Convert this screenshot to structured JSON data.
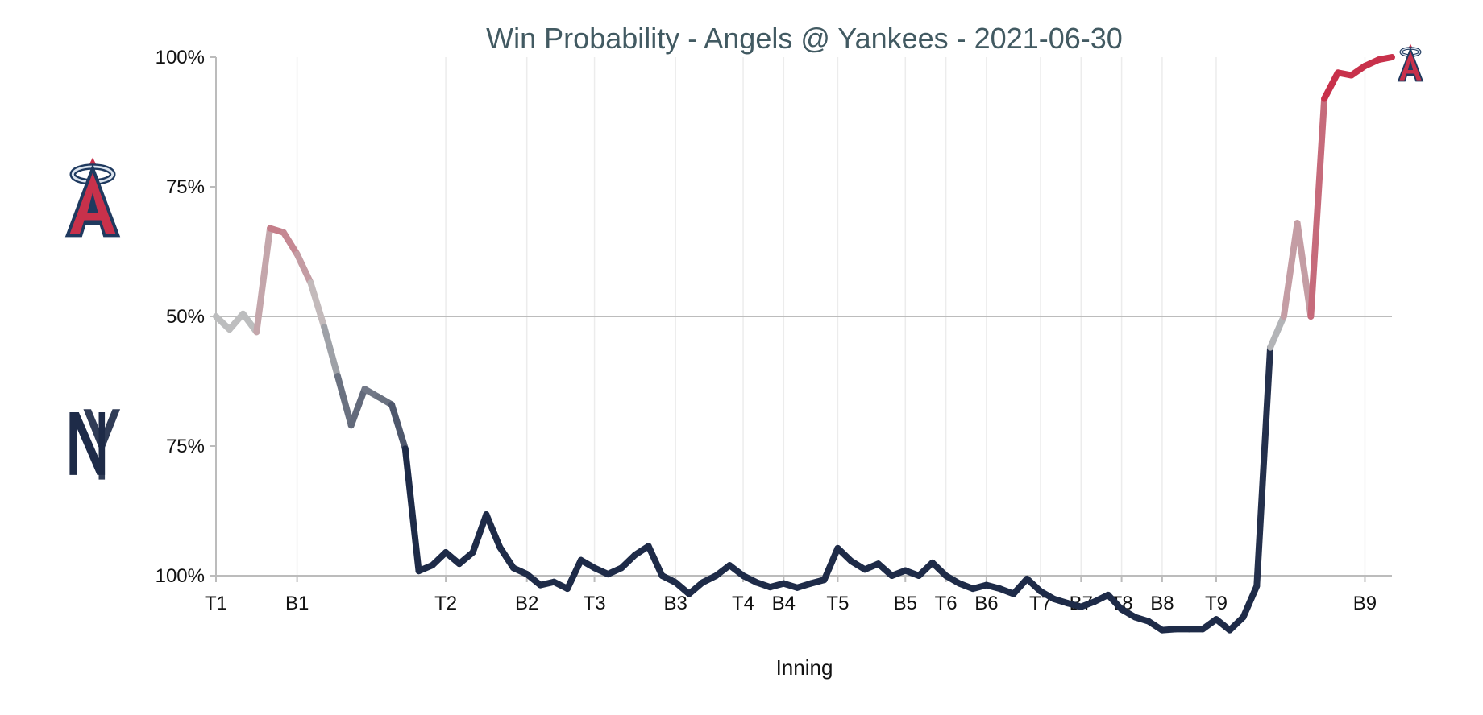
{
  "chart_data": {
    "type": "line",
    "title": "Win Probability - Angels @ Yankees - 2021-06-30",
    "xlabel": "Inning",
    "ylabel": "",
    "x_ticks": [
      {
        "label": "T1",
        "x": 0
      },
      {
        "label": "B1",
        "x": 6
      },
      {
        "label": "T2",
        "x": 17
      },
      {
        "label": "B2",
        "x": 23
      },
      {
        "label": "T3",
        "x": 28
      },
      {
        "label": "B3",
        "x": 34
      },
      {
        "label": "T4",
        "x": 39
      },
      {
        "label": "B4",
        "x": 42
      },
      {
        "label": "T5",
        "x": 46
      },
      {
        "label": "B5",
        "x": 51
      },
      {
        "label": "T6",
        "x": 54
      },
      {
        "label": "B6",
        "x": 57
      },
      {
        "label": "T7",
        "x": 61
      },
      {
        "label": "B7",
        "x": 64
      },
      {
        "label": "T8",
        "x": 67
      },
      {
        "label": "B8",
        "x": 70
      },
      {
        "label": "T9",
        "x": 74
      },
      {
        "label": "B9",
        "x": 85
      }
    ],
    "x_range": [
      0,
      87
    ],
    "y_ticks": [
      "100%",
      "75%",
      "50%",
      "75%",
      "100%"
    ],
    "y_range": [
      0,
      100
    ],
    "series": [
      {
        "values": [
          50,
          47.5,
          50.5,
          47,
          67,
          66.2,
          62,
          56.5,
          48,
          38.5,
          29,
          36,
          34.5,
          33,
          24.5,
          0.9,
          2,
          4.5,
          2.3,
          4.5,
          11.8,
          5.5,
          1.5,
          0.3,
          -1.8,
          -1.2,
          -2.5,
          3,
          1.5,
          0.3,
          1.5,
          4,
          5.7,
          0,
          -1.3,
          -3.5,
          -1.3,
          0,
          2,
          0,
          -1.3,
          -2.2,
          -1.5,
          -2.3,
          -1.5,
          -0.8,
          5.3,
          2.8,
          1.2,
          2.3,
          0,
          1,
          0,
          2.5,
          0,
          -1.5,
          -2.5,
          -1.8,
          -2.5,
          -3.5,
          -0.6,
          -3,
          -4.5,
          -5.3,
          -6,
          -5,
          -3.7,
          -6.5,
          -8,
          -8.8,
          -10.5,
          -10.3,
          -10.3,
          -10.3,
          -8.4,
          -10.5,
          -8,
          -2,
          44,
          50,
          68,
          50,
          92,
          97,
          96.5,
          98.3,
          99.5,
          100
        ]
      }
    ],
    "reference_line": 50,
    "grid": "vertical at inning ticks",
    "colors": {
      "angels": "#c8314b",
      "neutral": "#c3c3c3",
      "yankees": "#1e2b48",
      "title": "#425a62",
      "axis": "#bcbcbc",
      "grid": "#ececec"
    }
  },
  "logos": {
    "angels": {
      "letter": "A",
      "icon": "angels-logo-icon"
    },
    "yankees": {
      "letters": "NY",
      "icon": "yankees-logo-icon"
    }
  }
}
